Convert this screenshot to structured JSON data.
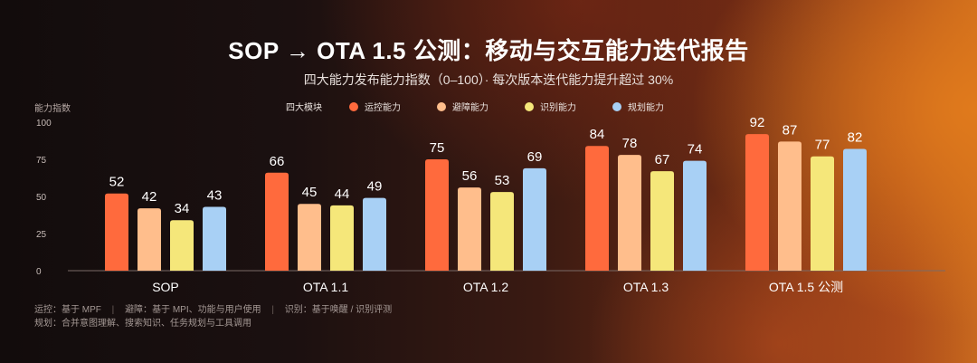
{
  "title": "SOP → OTA 1.5 公测：移动与交互能力迭代报告",
  "subtitle": "四大能力发布能力指数（0–100）· 每次版本迭代能力提升超过 30%",
  "legend": {
    "title": "四大模块",
    "items": [
      {
        "label": "运控能力",
        "color": "#ff6a3d"
      },
      {
        "label": "避障能力",
        "color": "#ffbe8c"
      },
      {
        "label": "识别能力",
        "color": "#f5e77a"
      },
      {
        "label": "规划能力",
        "color": "#a8d0f5"
      }
    ]
  },
  "chart_data": {
    "type": "bar",
    "title": "SOP → OTA 1.5 公测：移动与交互能力迭代报告",
    "subtitle": "四大能力发布能力指数（0–100）· 每次版本迭代能力提升超过 30%",
    "ylabel": "能力指数",
    "xlabel": "",
    "ylim": [
      0,
      100
    ],
    "yticks": [
      0,
      25,
      50,
      75,
      100
    ],
    "grid": false,
    "legend_position": "top",
    "categories": [
      "SOP",
      "OTA 1.1",
      "OTA 1.2",
      "OTA 1.3",
      "OTA 1.5 公测"
    ],
    "series": [
      {
        "name": "运控能力",
        "color": "#ff6a3d",
        "values": [
          52,
          66,
          75,
          84,
          92
        ]
      },
      {
        "name": "避障能力",
        "color": "#ffbe8c",
        "values": [
          42,
          45,
          56,
          78,
          87
        ]
      },
      {
        "name": "识别能力",
        "color": "#f5e77a",
        "values": [
          34,
          44,
          53,
          67,
          77
        ]
      },
      {
        "name": "规划能力",
        "color": "#a8d0f5",
        "values": [
          43,
          49,
          69,
          74,
          82
        ]
      }
    ]
  },
  "footer": {
    "line1": [
      {
        "label": "运控：",
        "text": "基于 MPF"
      },
      {
        "label": "避障：",
        "text": "基于 MPI、功能与用户使用"
      },
      {
        "label": "识别：",
        "text": "基于唤醒 / 识别评测"
      }
    ],
    "line2": {
      "label": "规划：",
      "text": "合并意图理解、搜索知识、任务规划与工具调用"
    }
  }
}
